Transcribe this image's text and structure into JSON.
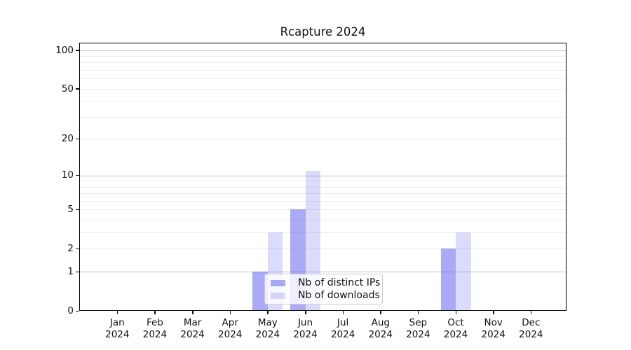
{
  "chart_data": {
    "type": "bar",
    "title": "Rcapture 2024",
    "categories": [
      "Jan 2024",
      "Feb 2024",
      "Mar 2024",
      "Apr 2024",
      "May 2024",
      "Jun 2024",
      "Jul 2024",
      "Aug 2024",
      "Sep 2024",
      "Oct 2024",
      "Nov 2024",
      "Dec 2024"
    ],
    "series": [
      {
        "name": "Nb of distinct IPs",
        "color_base": "#5555f0",
        "alpha": 0.5,
        "values": [
          0,
          0,
          0,
          0,
          1,
          5,
          0,
          0,
          0,
          2,
          0,
          0
        ]
      },
      {
        "name": "Nb of downloads",
        "color_base": "#5555f0",
        "alpha": 0.21,
        "values": [
          0,
          0,
          0,
          0,
          3,
          11,
          0,
          0,
          0,
          3,
          0,
          0
        ]
      }
    ],
    "y_axis": {
      "scale": "log1p",
      "tick_labels": [
        "0",
        "1",
        "2",
        "5",
        "10",
        "20",
        "50",
        "100"
      ],
      "tick_values": [
        0,
        1,
        2,
        5,
        10,
        20,
        50,
        100
      ],
      "major_gridlines": [
        1,
        10,
        100
      ],
      "minor_gridlines": [
        2,
        3,
        4,
        5,
        6,
        7,
        8,
        9,
        20,
        30,
        40,
        50,
        60,
        70,
        80,
        90
      ],
      "ylim": [
        0,
        114
      ]
    },
    "xlabel": "",
    "ylabel": "",
    "grid": "on",
    "legend_position": "lower center-left inside plot",
    "text_color": "#111111",
    "gridline_major_color": "#c4c4c4",
    "gridline_minor_color": "#ececec"
  }
}
